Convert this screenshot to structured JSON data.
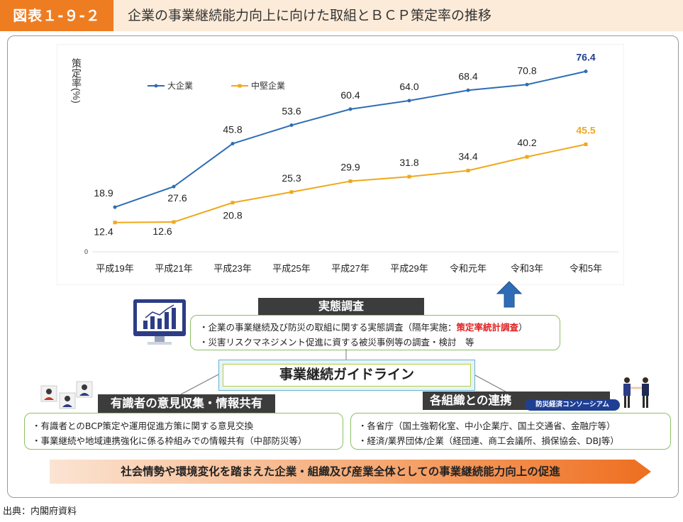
{
  "header": {
    "figure_label": "図表１-９-２",
    "title": "企業の事業継続能力向上に向けた取組とＢＣＰ策定率の推移"
  },
  "chart_data": {
    "type": "line",
    "ylabel": "策定率(%)",
    "y_tick_labels": [
      "0"
    ],
    "ylim": [
      0,
      85
    ],
    "categories": [
      "平成19年",
      "平成21年",
      "平成23年",
      "平成25年",
      "平成27年",
      "平成29年",
      "令和元年",
      "令和3年",
      "令和5年"
    ],
    "series": [
      {
        "name": "大企業",
        "color": "#2e6db5",
        "last_label_color": "#1d3f8f",
        "values": [
          18.9,
          27.6,
          45.8,
          53.6,
          60.4,
          64.0,
          68.4,
          70.8,
          76.4
        ],
        "labels": [
          "18.9",
          "27.6",
          "45.8",
          "53.6",
          "60.4",
          "64.0",
          "68.4",
          "70.8",
          "76.4"
        ]
      },
      {
        "name": "中堅企業",
        "color": "#f0a81c",
        "last_label_color": "#f0a81c",
        "values": [
          12.4,
          12.6,
          20.8,
          25.3,
          29.9,
          31.8,
          34.4,
          40.2,
          45.5
        ],
        "labels": [
          "12.4",
          "12.6",
          "20.8",
          "25.3",
          "29.9",
          "31.8",
          "34.4",
          "40.2",
          "45.5"
        ]
      }
    ],
    "legend_position": "top-left",
    "grid": false
  },
  "survey": {
    "title": "実態調査",
    "line1_prefix": "・企業の事業継続及び防災の取組に関する実態調査（隔年実施：",
    "line1_highlight": "策定率統計調査",
    "line1_suffix": "）",
    "line2": "・災害リスクマネジメント促進に資する被災事例等の調査・検討　等"
  },
  "guideline": {
    "title": "事業継続ガイドライン"
  },
  "experts": {
    "title": "有識者の意見収集・情報共有",
    "line1": "・有識者とのBCP策定や運用促進方策に関する意見交換",
    "line2": "・事業継続や地域連携強化に係る枠組みでの情報共有（中部防災等）"
  },
  "orgs": {
    "title": "各組織との連携",
    "pill": "防災経済コンソーシアム",
    "line1": "・各省庁（国土強靭化室、中小企業庁、国土交通省、金融庁等）",
    "line2": "・経済/業界団体/企業（経団連、商工会議所、損保協会、DBJ等）"
  },
  "bottom_banner": "社会情勢や環境変化を踏まえた企業・組織及び産業全体としての事業継続能力向上の促進",
  "source": "出典：内閣府資料",
  "colors": {
    "accent_orange": "#ee7d22",
    "header_bg": "#fcebd8",
    "green_border": "#8cc063",
    "arrow_blue": "#2e6db5"
  }
}
